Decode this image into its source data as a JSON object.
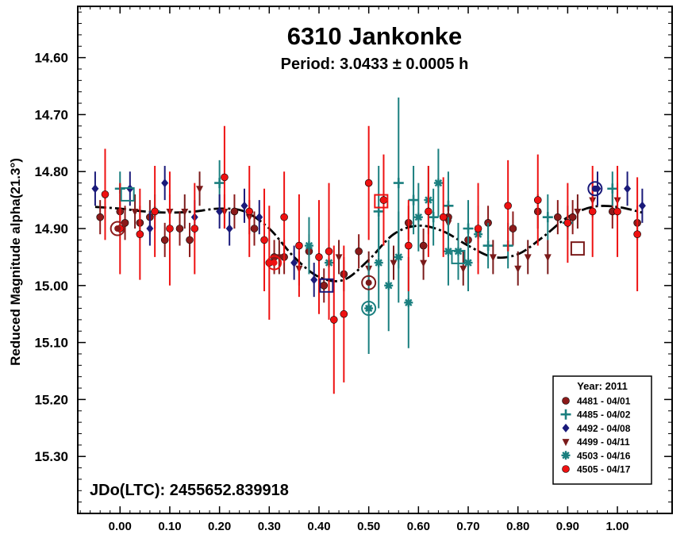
{
  "chart_data": {
    "type": "scatter",
    "title": "6310 Jankonke",
    "subtitle": "Period: 3.0433 ± 0.0005 h",
    "ylabel": "Reduced Magnitude alpha(21.3°)",
    "xlabel": "",
    "xlim": [
      -0.085,
      1.11
    ],
    "ylim": [
      15.4,
      14.51
    ],
    "y_inverted": true,
    "x_ticks": [
      0.0,
      0.1,
      0.2,
      0.3,
      0.4,
      0.5,
      0.6,
      0.7,
      0.8,
      0.9,
      1.0
    ],
    "x_tick_labels": [
      "0.00",
      "0.10",
      "0.20",
      "0.30",
      "0.40",
      "0.50",
      "0.60",
      "0.70",
      "0.80",
      "0.90",
      "1.00"
    ],
    "y_ticks": [
      14.6,
      14.7,
      14.8,
      14.9,
      15.0,
      15.1,
      15.2,
      15.3
    ],
    "y_tick_labels": [
      "14.60",
      "14.70",
      "14.80",
      "14.90",
      "15.00",
      "15.10",
      "15.20",
      "15.30"
    ],
    "grid": false,
    "legend_position": "bottom-right",
    "legend_title": "Year: 2011",
    "annotation": "JDo(LTC): 2455652.839918",
    "fit_curve": {
      "color": "#000000",
      "points": [
        [
          -0.05,
          14.862
        ],
        [
          0.0,
          14.865
        ],
        [
          0.05,
          14.87
        ],
        [
          0.1,
          14.872
        ],
        [
          0.15,
          14.87
        ],
        [
          0.2,
          14.865
        ],
        [
          0.25,
          14.87
        ],
        [
          0.3,
          14.9
        ],
        [
          0.35,
          14.95
        ],
        [
          0.4,
          14.985
        ],
        [
          0.45,
          14.99
        ],
        [
          0.5,
          14.955
        ],
        [
          0.55,
          14.91
        ],
        [
          0.6,
          14.895
        ],
        [
          0.65,
          14.905
        ],
        [
          0.7,
          14.93
        ],
        [
          0.75,
          14.95
        ],
        [
          0.8,
          14.945
        ],
        [
          0.85,
          14.915
        ],
        [
          0.9,
          14.88
        ],
        [
          0.95,
          14.862
        ],
        [
          1.0,
          14.862
        ],
        [
          1.05,
          14.872
        ]
      ]
    },
    "series": [
      {
        "name": "4481 - 04/01",
        "marker": "circle",
        "color": "#8b1a1a",
        "points": [
          [
            -0.04,
            14.88,
            0.03
          ],
          [
            0.0,
            14.87,
            0.03
          ],
          [
            0.01,
            14.89,
            0.03
          ],
          [
            0.04,
            14.89,
            0.03
          ],
          [
            0.06,
            14.88,
            0.03
          ],
          [
            0.09,
            14.92,
            0.03
          ],
          [
            0.12,
            14.9,
            0.03
          ],
          [
            0.14,
            14.92,
            0.03
          ],
          [
            0.23,
            14.87,
            0.03
          ],
          [
            0.27,
            14.9,
            0.03
          ],
          [
            0.31,
            14.95,
            0.03
          ],
          [
            0.33,
            14.95,
            0.03
          ],
          [
            0.38,
            14.94,
            0.03
          ],
          [
            0.41,
            15.0,
            0.03
          ],
          [
            0.45,
            14.98,
            0.03
          ],
          [
            0.48,
            14.94,
            0.03
          ],
          [
            0.58,
            14.89,
            0.03
          ],
          [
            0.61,
            14.93,
            0.03
          ],
          [
            0.66,
            14.88,
            0.03
          ],
          [
            0.7,
            14.92,
            0.03
          ],
          [
            0.74,
            14.89,
            0.03
          ],
          [
            0.79,
            14.9,
            0.03
          ],
          [
            0.84,
            14.87,
            0.03
          ],
          [
            0.88,
            14.88,
            0.03
          ],
          [
            0.91,
            14.88,
            0.03
          ],
          [
            0.99,
            14.87,
            0.03
          ],
          [
            1.04,
            14.89,
            0.03
          ]
        ]
      },
      {
        "name": "4485 - 04/02",
        "marker": "plus",
        "color": "#1a7f7f",
        "points": [
          [
            0.0,
            14.83,
            0.03
          ],
          [
            0.07,
            14.87,
            0.03
          ],
          [
            0.2,
            14.82,
            0.04
          ],
          [
            0.52,
            14.87,
            0.08
          ],
          [
            0.56,
            14.82,
            0.15
          ],
          [
            0.59,
            14.85,
            0.06
          ],
          [
            0.63,
            14.88,
            0.05
          ],
          [
            0.66,
            14.86,
            0.06
          ],
          [
            0.7,
            14.9,
            0.05
          ],
          [
            0.74,
            14.93,
            0.04
          ],
          [
            0.78,
            14.93,
            0.04
          ],
          [
            0.86,
            14.88,
            0.04
          ],
          [
            0.9,
            14.89,
            0.03
          ],
          [
            0.99,
            14.83,
            0.03
          ]
        ]
      },
      {
        "name": "4492 - 04/08",
        "marker": "diamond",
        "color": "#1a1a7a",
        "points": [
          [
            -0.05,
            14.83,
            0.03
          ],
          [
            0.02,
            14.83,
            0.03
          ],
          [
            0.06,
            14.9,
            0.03
          ],
          [
            0.09,
            14.82,
            0.03
          ],
          [
            0.15,
            14.88,
            0.03
          ],
          [
            0.2,
            14.87,
            0.03
          ],
          [
            0.22,
            14.9,
            0.03
          ],
          [
            0.25,
            14.86,
            0.03
          ],
          [
            0.28,
            14.88,
            0.03
          ],
          [
            0.35,
            14.96,
            0.03
          ],
          [
            0.39,
            14.99,
            0.03
          ],
          [
            0.96,
            14.83,
            0.03
          ],
          [
            1.02,
            14.83,
            0.03
          ],
          [
            1.05,
            14.86,
            0.03
          ]
        ]
      },
      {
        "name": "4499 - 04/11",
        "marker": "triangle-down",
        "color": "#7a1a1a",
        "points": [
          [
            0.03,
            14.87,
            0.03
          ],
          [
            0.1,
            14.87,
            0.03
          ],
          [
            0.13,
            14.87,
            0.03
          ],
          [
            0.16,
            14.83,
            0.03
          ],
          [
            0.21,
            14.87,
            0.03
          ],
          [
            0.26,
            14.88,
            0.03
          ],
          [
            0.32,
            14.95,
            0.03
          ],
          [
            0.36,
            14.97,
            0.03
          ],
          [
            0.44,
            14.95,
            0.03
          ],
          [
            0.5,
            14.97,
            0.03
          ],
          [
            0.55,
            14.96,
            0.03
          ],
          [
            0.61,
            14.96,
            0.03
          ],
          [
            0.66,
            14.89,
            0.03
          ],
          [
            0.69,
            14.97,
            0.03
          ],
          [
            0.75,
            14.95,
            0.03
          ],
          [
            0.8,
            14.97,
            0.03
          ],
          [
            0.82,
            14.95,
            0.03
          ],
          [
            0.86,
            14.95,
            0.03
          ],
          [
            0.92,
            14.87,
            0.03
          ],
          [
            0.95,
            14.85,
            0.03
          ],
          [
            1.0,
            14.85,
            0.03
          ]
        ]
      },
      {
        "name": "4503 - 04/16",
        "marker": "asterisk",
        "color": "#1a7f7f",
        "points": [
          [
            0.38,
            14.93,
            0.05
          ],
          [
            0.42,
            14.96,
            0.06
          ],
          [
            0.5,
            15.04,
            0.08
          ],
          [
            0.52,
            14.96,
            0.08
          ],
          [
            0.54,
            15.0,
            0.08
          ],
          [
            0.56,
            14.95,
            0.08
          ],
          [
            0.58,
            15.03,
            0.08
          ],
          [
            0.6,
            14.88,
            0.06
          ],
          [
            0.62,
            14.85,
            0.06
          ],
          [
            0.64,
            14.82,
            0.06
          ],
          [
            0.66,
            14.94,
            0.06
          ],
          [
            0.68,
            14.94,
            0.05
          ],
          [
            0.7,
            14.96,
            0.05
          ],
          [
            0.72,
            14.91,
            0.05
          ]
        ]
      },
      {
        "name": "4505 - 04/17",
        "marker": "circle",
        "color": "#ee1111",
        "points": [
          [
            -0.03,
            14.84,
            0.08
          ],
          [
            0.0,
            14.9,
            0.08
          ],
          [
            0.04,
            14.91,
            0.08
          ],
          [
            0.07,
            14.87,
            0.08
          ],
          [
            0.1,
            14.9,
            0.1
          ],
          [
            0.15,
            14.9,
            0.08
          ],
          [
            0.21,
            14.81,
            0.09
          ],
          [
            0.26,
            14.87,
            0.08
          ],
          [
            0.29,
            14.92,
            0.09
          ],
          [
            0.3,
            14.96,
            0.1
          ],
          [
            0.33,
            14.88,
            0.08
          ],
          [
            0.36,
            14.93,
            0.09
          ],
          [
            0.4,
            14.95,
            0.1
          ],
          [
            0.42,
            14.94,
            0.12
          ],
          [
            0.43,
            15.06,
            0.13
          ],
          [
            0.45,
            15.05,
            0.12
          ],
          [
            0.5,
            14.82,
            0.1
          ],
          [
            0.53,
            14.85,
            0.08
          ],
          [
            0.58,
            14.93,
            0.08
          ],
          [
            0.62,
            14.87,
            0.08
          ],
          [
            0.65,
            14.88,
            0.07
          ],
          [
            0.72,
            14.9,
            0.08
          ],
          [
            0.78,
            14.86,
            0.08
          ],
          [
            0.84,
            14.85,
            0.08
          ],
          [
            0.9,
            14.89,
            0.07
          ],
          [
            0.95,
            14.87,
            0.08
          ],
          [
            1.0,
            14.87,
            0.08
          ],
          [
            1.04,
            14.91,
            0.1
          ]
        ]
      }
    ],
    "open_markers": [
      {
        "x": -0.005,
        "y": 14.9,
        "shape": "circle-ring",
        "color": "#8b1a1a"
      },
      {
        "x": 0.015,
        "y": 14.84,
        "shape": "square-open",
        "color": "#1a7f7f"
      },
      {
        "x": 0.31,
        "y": 14.96,
        "shape": "circle-ring",
        "color": "#ee1111"
      },
      {
        "x": 0.415,
        "y": 15.0,
        "shape": "square-open",
        "color": "#1a1a7a"
      },
      {
        "x": 0.5,
        "y": 14.995,
        "shape": "circle-ring",
        "color": "#7a1a1a"
      },
      {
        "x": 0.5,
        "y": 15.04,
        "shape": "circle-ring",
        "color": "#1a7f7f"
      },
      {
        "x": 0.525,
        "y": 14.852,
        "shape": "square-open",
        "color": "#ee1111"
      },
      {
        "x": 0.68,
        "y": 14.95,
        "shape": "square-open",
        "color": "#1a7f7f"
      },
      {
        "x": 0.92,
        "y": 14.935,
        "shape": "square-open",
        "color": "#7a1a1a"
      },
      {
        "x": 0.955,
        "y": 14.83,
        "shape": "circle-ring",
        "color": "#1a1a7a"
      }
    ]
  }
}
